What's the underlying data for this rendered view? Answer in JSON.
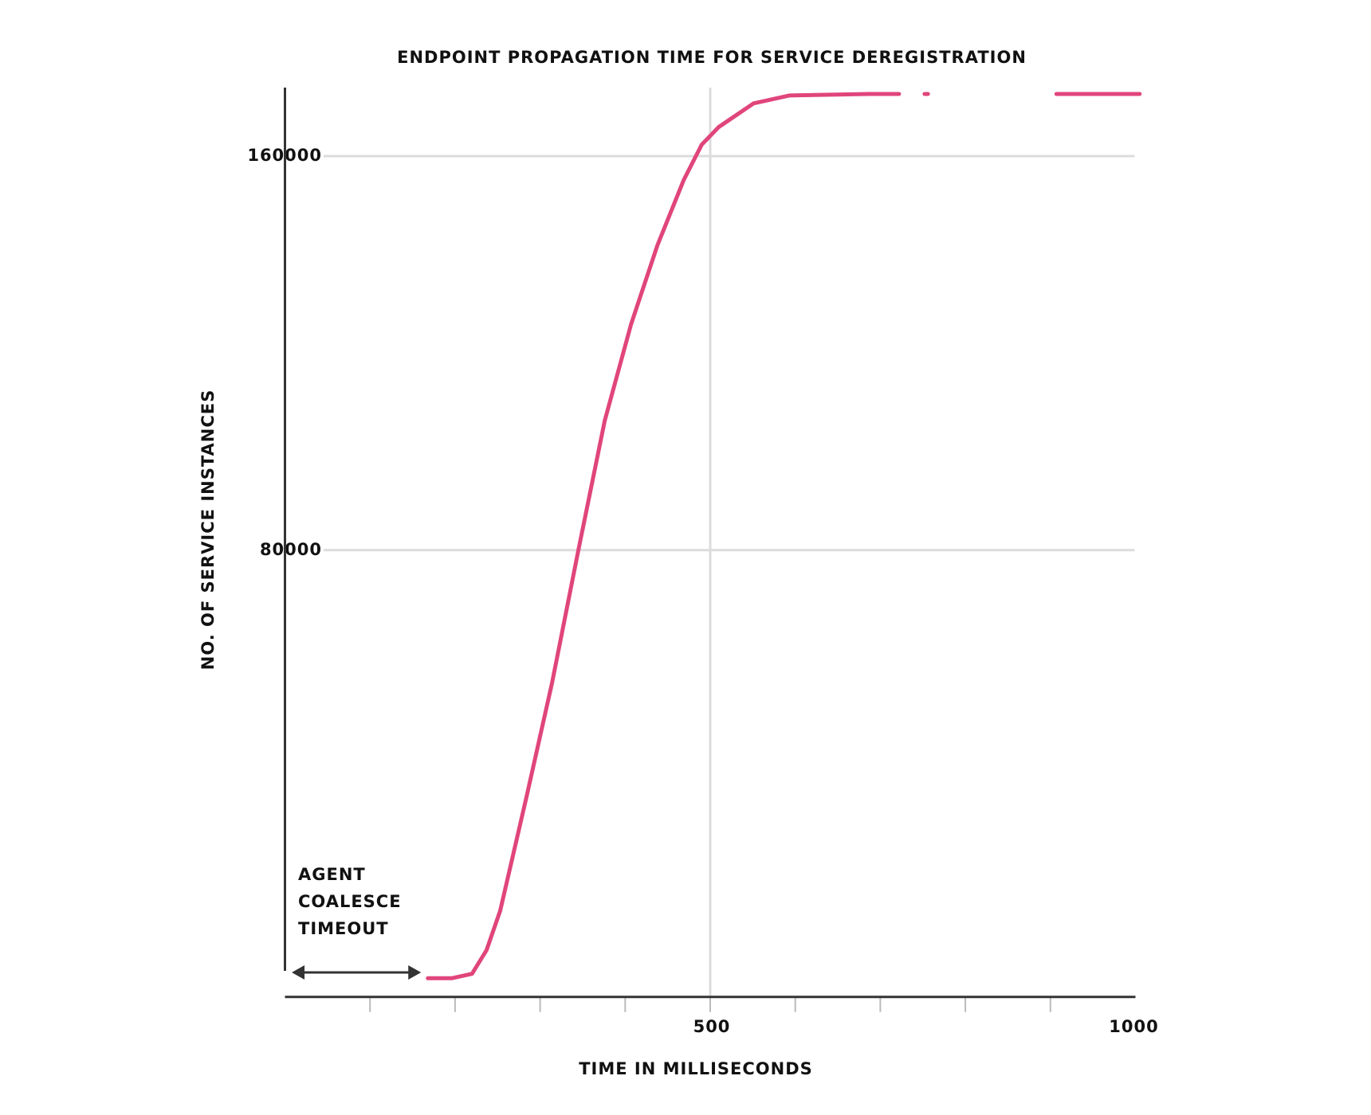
{
  "chart_data": {
    "type": "line",
    "title": "ENDPOINT PROPAGATION TIME FOR SERVICE DEREGISTRATION",
    "xlabel": "TIME IN MILLISECONDS",
    "ylabel": "NO. OF SERVICE INSTANCES",
    "annotation": [
      "AGENT",
      "COALESCE",
      "TIMEOUT"
    ],
    "x": [
      168,
      196,
      220,
      237,
      253,
      284,
      314,
      345,
      376,
      407,
      438,
      469,
      490,
      510,
      551,
      593,
      686,
      722,
      735,
      752,
      756,
      800,
      907,
      1005
    ],
    "series": [
      {
        "name": "propagation",
        "color": "#e0457b",
        "values": [
          -6900,
          -6900,
          -6000,
          -1200,
          6800,
          29900,
          53000,
          80000,
          106300,
          125900,
          141900,
          155200,
          162300,
          165900,
          170700,
          172300,
          172600,
          172600,
          null,
          172600,
          172600,
          null,
          172600,
          172600
        ]
      }
    ],
    "xlim": [
      0,
      1000
    ],
    "ylim": [
      -10700,
      173900
    ],
    "xticks": [
      500,
      1000
    ],
    "xminorticks": [
      100,
      200,
      300,
      400,
      500,
      600,
      700,
      800,
      900
    ],
    "yticks": [
      80000,
      160000
    ],
    "grid": true
  }
}
